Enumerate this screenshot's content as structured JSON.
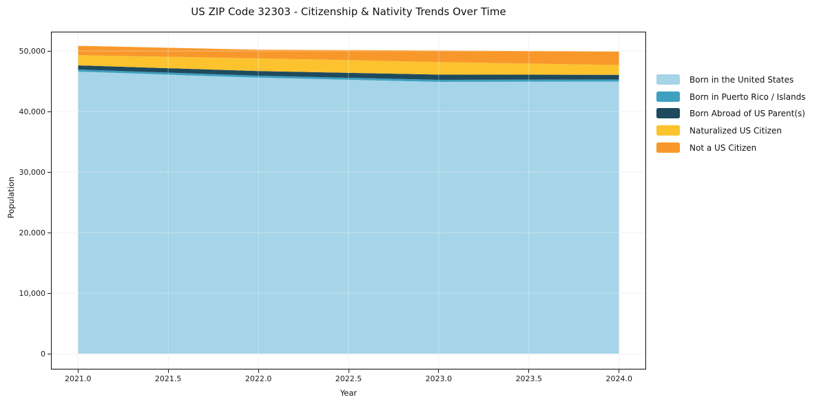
{
  "figure": {
    "background": "#ffffff",
    "spine_color": "#1a1a1a",
    "gridline_color": "#ebebeb",
    "gridline_overlay_color": "rgba(255,255,255,0.35)"
  },
  "chart_data": {
    "type": "area",
    "stacked": true,
    "title": "US ZIP Code 32303 - Citizenship & Nativity Trends Over Time",
    "xlabel": "Year",
    "ylabel": "Population",
    "x": [
      2021,
      2022,
      2023,
      2024
    ],
    "series": [
      {
        "name": "Born in the United States",
        "color": "#a6d4e8",
        "values": [
          46600,
          45600,
          44900,
          44950
        ]
      },
      {
        "name": "Born in Puerto Rico / Islands",
        "color": "#3fa0c0",
        "values": [
          350,
          330,
          340,
          340
        ]
      },
      {
        "name": "Born Abroad of US Parent(s)",
        "color": "#1f4a5e",
        "values": [
          680,
          770,
          870,
          780
        ]
      },
      {
        "name": "Naturalized US Citizen",
        "color": "#fcc32f",
        "values": [
          1700,
          2080,
          2080,
          1620
        ]
      },
      {
        "name": "Not a US Citizen",
        "color": "#f8982b",
        "values": [
          1530,
          1440,
          1900,
          2210
        ]
      }
    ],
    "stacked_totals": [
      50860,
      50220,
      50090,
      49900
    ],
    "xlim": [
      2020.85,
      2024.15
    ],
    "ylim": [
      -2600,
      53200
    ],
    "xticks": [
      2021.0,
      2021.5,
      2022.0,
      2022.5,
      2023.0,
      2023.5,
      2024.0
    ],
    "xtick_labels": [
      "2021.0",
      "2021.5",
      "2022.0",
      "2022.5",
      "2023.0",
      "2023.5",
      "2024.0"
    ],
    "yticks": [
      0,
      10000,
      20000,
      30000,
      40000,
      50000
    ],
    "ytick_labels": [
      "0",
      "10,000",
      "20,000",
      "30,000",
      "40,000",
      "50,000"
    ],
    "grid": true,
    "legend_position": "right"
  }
}
